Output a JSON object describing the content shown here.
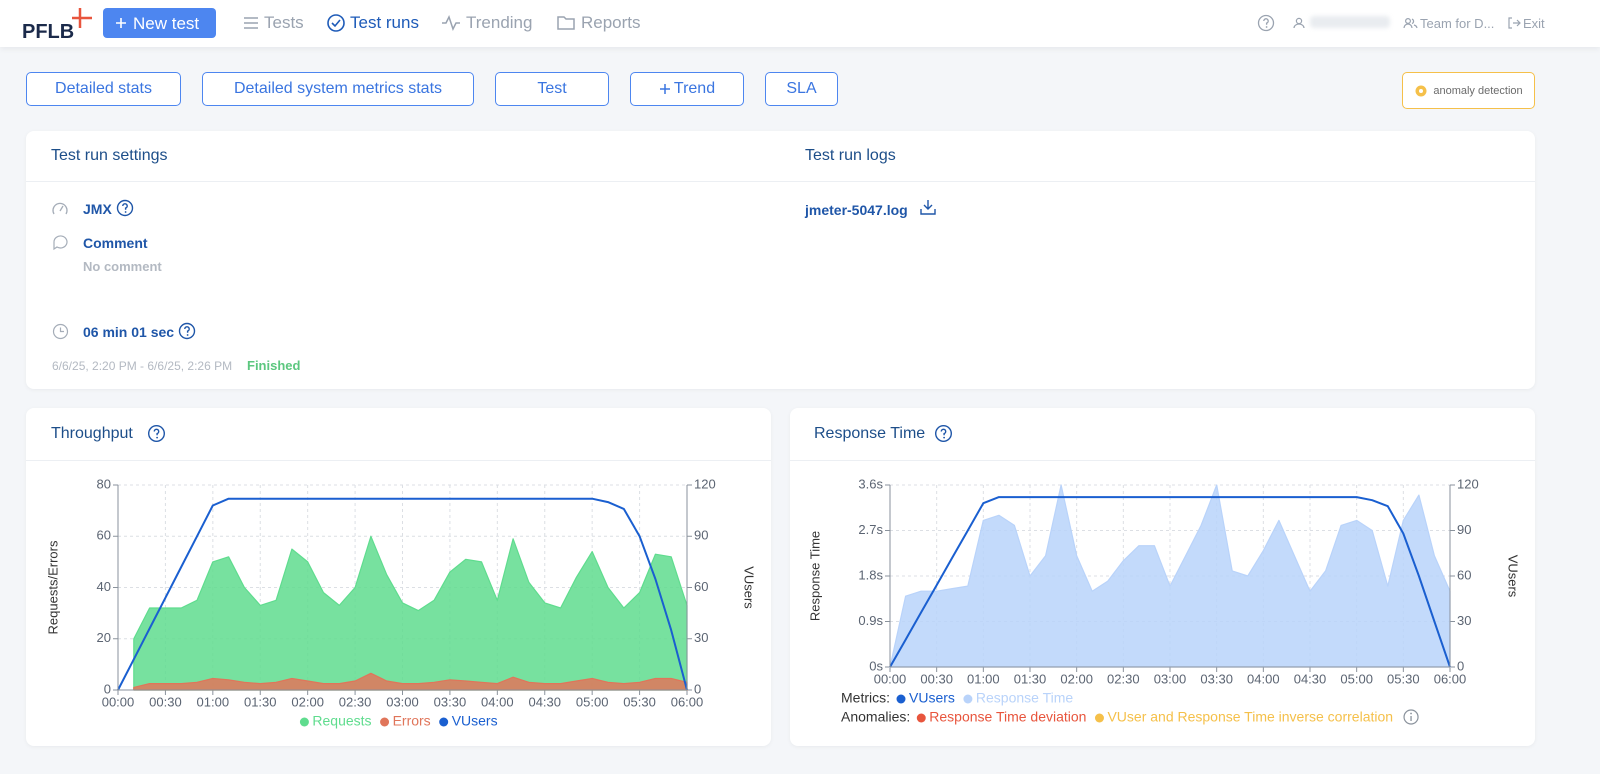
{
  "header": {
    "logo": "PFLB",
    "new_test": "New test",
    "nav": [
      "Tests",
      "Test runs",
      "Trending",
      "Reports"
    ],
    "team": "Team for D...",
    "exit": "Exit"
  },
  "actions": [
    "Detailed stats",
    "Detailed system metrics stats",
    "Test",
    "Trend",
    "SLA"
  ],
  "anomaly_detection": "anomaly detection",
  "settings": {
    "title": "Test run settings",
    "type": "JMX",
    "comment_label": "Comment",
    "comment": "No comment",
    "duration": "06 min 01 sec",
    "period": "6/6/25, 2:20 PM - 6/6/25, 2:26 PM",
    "status": "Finished"
  },
  "logs": {
    "title": "Test run logs",
    "file": "jmeter-5047.log"
  },
  "chart_data": [
    {
      "type": "area",
      "title": "Throughput",
      "ylabel": "Requests/Errors",
      "y2label": "VUsers",
      "x": [
        0,
        10,
        20,
        30,
        40,
        50,
        60,
        70,
        80,
        90,
        100,
        110,
        120,
        130,
        140,
        150,
        160,
        170,
        180,
        190,
        200,
        210,
        220,
        230,
        240,
        250,
        260,
        270,
        280,
        290,
        300,
        310,
        320,
        330,
        340,
        350,
        360
      ],
      "xlim": [
        0,
        360
      ],
      "xticks": [
        {
          "value": 0,
          "label": "00:00"
        },
        {
          "value": 30,
          "label": "00:30"
        },
        {
          "value": 60,
          "label": "01:00"
        },
        {
          "value": 90,
          "label": "01:30"
        },
        {
          "value": 120,
          "label": "02:00"
        },
        {
          "value": 150,
          "label": "02:30"
        },
        {
          "value": 180,
          "label": "03:00"
        },
        {
          "value": 210,
          "label": "03:30"
        },
        {
          "value": 240,
          "label": "04:00"
        },
        {
          "value": 270,
          "label": "04:30"
        },
        {
          "value": 300,
          "label": "05:00"
        },
        {
          "value": 330,
          "label": "05:30"
        },
        {
          "value": 360,
          "label": "06:00"
        }
      ],
      "ylim": [
        0,
        80
      ],
      "yticks": [
        0,
        20,
        40,
        60,
        80
      ],
      "y2lim": [
        0,
        120
      ],
      "y2ticks": [
        0,
        30,
        60,
        90,
        120
      ],
      "grid": true,
      "legend": "bottom",
      "series": [
        {
          "name": "Requests",
          "kind": "area",
          "color": "#5fdc8e",
          "values": [
            null,
            20,
            32,
            32,
            32,
            35,
            50,
            52,
            40,
            33,
            35,
            55,
            50,
            38,
            33,
            40,
            60,
            45,
            34,
            31,
            35,
            46,
            51,
            50,
            35,
            59,
            42,
            34,
            32,
            44,
            54,
            40,
            32,
            38,
            53,
            52,
            33
          ]
        },
        {
          "name": "Errors",
          "kind": "area",
          "color": "#e0755a",
          "values": [
            null,
            1,
            2.5,
            2.5,
            2.5,
            3,
            4.5,
            4,
            3,
            2.5,
            3,
            4.5,
            3.5,
            2.5,
            2.5,
            3.5,
            6.5,
            3.5,
            2.5,
            2.5,
            3,
            4,
            3.5,
            3,
            2.5,
            5,
            3,
            2.5,
            2.5,
            3.5,
            4.5,
            3,
            2.5,
            3,
            4.5,
            4.5,
            3
          ]
        },
        {
          "name": "VUsers",
          "kind": "line",
          "axis": "y2",
          "color": "#1a5fd0",
          "values": [
            0,
            18,
            36,
            54,
            72,
            90,
            108,
            112,
            112,
            112,
            112,
            112,
            112,
            112,
            112,
            112,
            112,
            112,
            112,
            112,
            112,
            112,
            112,
            112,
            112,
            112,
            112,
            112,
            112,
            112,
            112,
            110,
            106,
            90,
            65,
            35,
            0
          ]
        }
      ]
    },
    {
      "type": "area",
      "title": "Response Time",
      "ylabel": "Response Time",
      "y2label": "VUsers",
      "x": [
        0,
        10,
        20,
        30,
        40,
        50,
        60,
        70,
        80,
        90,
        100,
        110,
        120,
        130,
        140,
        150,
        160,
        170,
        180,
        190,
        200,
        210,
        220,
        230,
        240,
        250,
        260,
        270,
        280,
        290,
        300,
        310,
        320,
        330,
        340,
        350,
        360
      ],
      "xlim": [
        0,
        360
      ],
      "xticks": [
        {
          "value": 0,
          "label": "00:00"
        },
        {
          "value": 30,
          "label": "00:30"
        },
        {
          "value": 60,
          "label": "01:00"
        },
        {
          "value": 90,
          "label": "01:30"
        },
        {
          "value": 120,
          "label": "02:00"
        },
        {
          "value": 150,
          "label": "02:30"
        },
        {
          "value": 180,
          "label": "03:00"
        },
        {
          "value": 210,
          "label": "03:30"
        },
        {
          "value": 240,
          "label": "04:00"
        },
        {
          "value": 270,
          "label": "04:30"
        },
        {
          "value": 300,
          "label": "05:00"
        },
        {
          "value": 330,
          "label": "05:30"
        },
        {
          "value": 360,
          "label": "06:00"
        }
      ],
      "ylim": [
        0,
        3.6
      ],
      "yticks": [
        {
          "value": 0,
          "label": "0s"
        },
        {
          "value": 0.9,
          "label": "0.9s"
        },
        {
          "value": 1.8,
          "label": "1.8s"
        },
        {
          "value": 2.7,
          "label": "2.7s"
        },
        {
          "value": 3.6,
          "label": "3.6s"
        }
      ],
      "y2lim": [
        0,
        120
      ],
      "y2ticks": [
        0,
        30,
        60,
        90,
        120
      ],
      "grid": true,
      "legend": "bottom-left",
      "legend_label": "Metrics:",
      "series": [
        {
          "name": "VUsers",
          "kind": "line",
          "axis": "y2",
          "color": "#1a5fd0",
          "values": [
            0,
            18,
            36,
            54,
            72,
            90,
            108,
            112,
            112,
            112,
            112,
            112,
            112,
            112,
            112,
            112,
            112,
            112,
            112,
            112,
            112,
            112,
            112,
            112,
            112,
            112,
            112,
            112,
            112,
            112,
            112,
            110,
            106,
            88,
            60,
            30,
            0
          ]
        },
        {
          "name": "Response Time",
          "kind": "area",
          "color": "#b9d3fa",
          "values": [
            0,
            1.4,
            1.5,
            1.5,
            1.55,
            1.6,
            2.9,
            3,
            2.8,
            1.8,
            2.2,
            3.6,
            2.2,
            1.5,
            1.7,
            2.1,
            2.4,
            2.4,
            1.6,
            2.2,
            2.8,
            3.6,
            1.9,
            1.8,
            2.3,
            2.9,
            2.2,
            1.5,
            1.9,
            2.8,
            2.9,
            2.7,
            1.6,
            2.9,
            3.4,
            2.2,
            1.5
          ]
        }
      ],
      "anomalies": {
        "label": "Anomalies:",
        "items": [
          {
            "name": "Response Time deviation",
            "color": "#e8553d"
          },
          {
            "name": "VUser and Response Time inverse correlation",
            "color": "#f5c04a"
          }
        ]
      }
    }
  ]
}
